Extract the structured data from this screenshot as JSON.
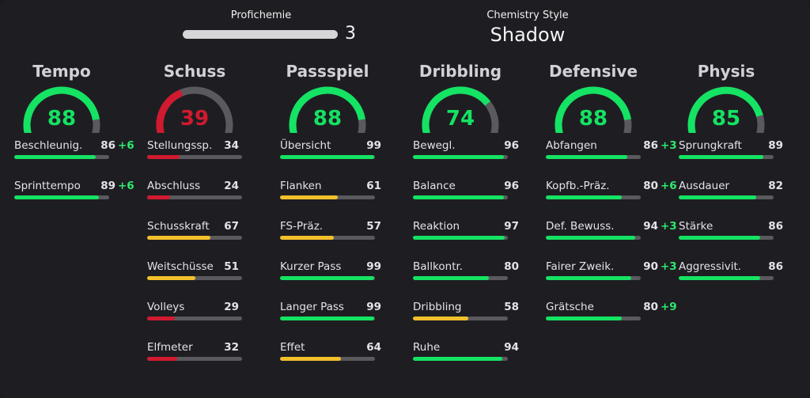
{
  "colors": {
    "high": "#14e363",
    "mid": "#f2c02a",
    "low": "#d11a2f",
    "track": "#5a5a5e",
    "boost": "#2ee86f"
  },
  "profichemie": {
    "label": "Profichemie",
    "value": "3",
    "level": 1.0
  },
  "chemistry_style": {
    "label": "Chemistry Style",
    "value": "Shadow"
  },
  "categories": [
    {
      "title": "Tempo",
      "rating": 88,
      "stats": [
        {
          "name": "Beschleunig.",
          "value": 86,
          "boost": "+6"
        },
        {
          "name": "Sprinttempo",
          "value": 89,
          "boost": "+6"
        }
      ]
    },
    {
      "title": "Schuss",
      "rating": 39,
      "stats": [
        {
          "name": "Stellungssp.",
          "value": 34,
          "boost": ""
        },
        {
          "name": "Abschluss",
          "value": 24,
          "boost": ""
        },
        {
          "name": "Schusskraft",
          "value": 67,
          "boost": ""
        },
        {
          "name": "Weitschüsse",
          "value": 51,
          "boost": ""
        },
        {
          "name": "Volleys",
          "value": 29,
          "boost": ""
        },
        {
          "name": "Elfmeter",
          "value": 32,
          "boost": ""
        }
      ]
    },
    {
      "title": "Passspiel",
      "rating": 88,
      "stats": [
        {
          "name": "Übersicht",
          "value": 99,
          "boost": ""
        },
        {
          "name": "Flanken",
          "value": 61,
          "boost": ""
        },
        {
          "name": "FS-Präz.",
          "value": 57,
          "boost": ""
        },
        {
          "name": "Kurzer Pass",
          "value": 99,
          "boost": ""
        },
        {
          "name": "Langer Pass",
          "value": 99,
          "boost": ""
        },
        {
          "name": "Effet",
          "value": 64,
          "boost": ""
        }
      ]
    },
    {
      "title": "Dribbling",
      "rating": 74,
      "stats": [
        {
          "name": "Bewegl.",
          "value": 96,
          "boost": ""
        },
        {
          "name": "Balance",
          "value": 96,
          "boost": ""
        },
        {
          "name": "Reaktion",
          "value": 97,
          "boost": ""
        },
        {
          "name": "Ballkontr.",
          "value": 80,
          "boost": ""
        },
        {
          "name": "Dribbling",
          "value": 58,
          "boost": ""
        },
        {
          "name": "Ruhe",
          "value": 94,
          "boost": ""
        }
      ]
    },
    {
      "title": "Defensive",
      "rating": 88,
      "stats": [
        {
          "name": "Abfangen",
          "value": 86,
          "boost": "+3"
        },
        {
          "name": "Kopfb.-Präz.",
          "value": 80,
          "boost": "+6"
        },
        {
          "name": "Def. Bewuss.",
          "value": 94,
          "boost": "+3"
        },
        {
          "name": "Fairer Zweik.",
          "value": 90,
          "boost": "+3"
        },
        {
          "name": "Grätsche",
          "value": 80,
          "boost": "+9"
        }
      ]
    },
    {
      "title": "Physis",
      "rating": 85,
      "stats": [
        {
          "name": "Sprungkraft",
          "value": 89,
          "boost": ""
        },
        {
          "name": "Ausdauer",
          "value": 82,
          "boost": ""
        },
        {
          "name": "Stärke",
          "value": 86,
          "boost": ""
        },
        {
          "name": "Aggressivit.",
          "value": 86,
          "boost": ""
        }
      ]
    }
  ]
}
